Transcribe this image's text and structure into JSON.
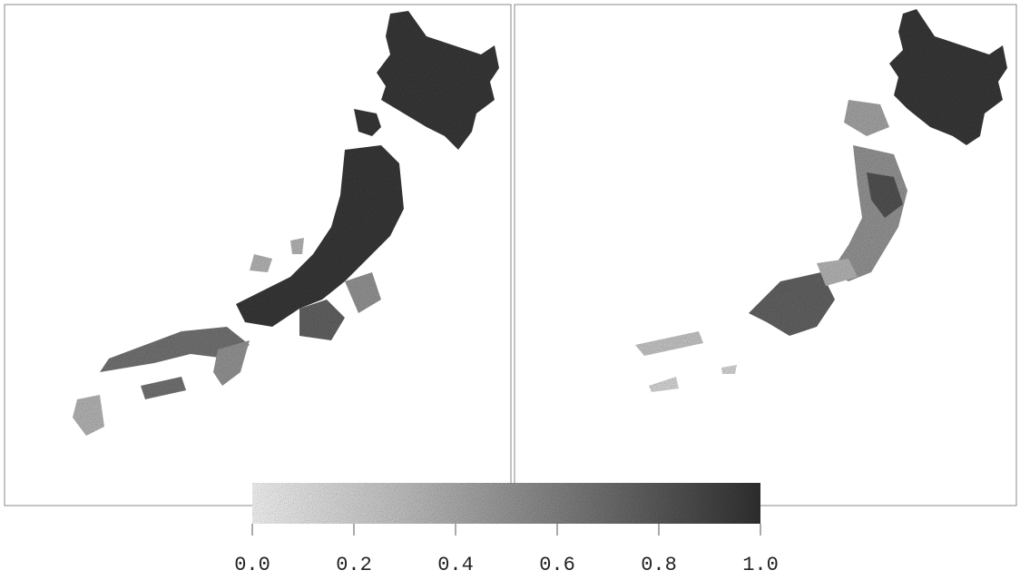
{
  "colorbar": {
    "lim": [
      0,
      1
    ],
    "ticks": [
      {
        "value": 0,
        "label": "0.0"
      },
      0.2,
      0.4,
      0.6,
      0.8,
      {
        "value": 1,
        "label": "1.0"
      }
    ]
  }
}
